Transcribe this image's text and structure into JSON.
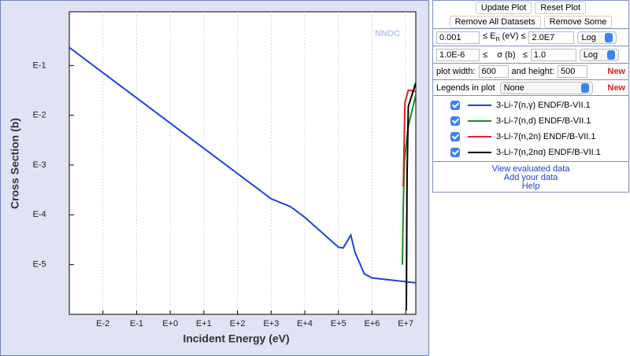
{
  "chart_data": {
    "type": "line",
    "x_label": "Incident Energy (eV)",
    "y_label": "Cross Section (b)",
    "x_log": true,
    "y_log": true,
    "grid": "x",
    "xlim": [
      0.001,
      20000000
    ],
    "ylim": [
      1e-06,
      1.2
    ],
    "xticks": [
      {
        "value": 0.01,
        "label": "E-2"
      },
      {
        "value": 0.1,
        "label": "E-1"
      },
      {
        "value": 1,
        "label": "E+0"
      },
      {
        "value": 10,
        "label": "E+1"
      },
      {
        "value": 100,
        "label": "E+2"
      },
      {
        "value": 1000,
        "label": "E+3"
      },
      {
        "value": 10000,
        "label": "E+4"
      },
      {
        "value": 100000,
        "label": "E+5"
      },
      {
        "value": 1000000,
        "label": "E+6"
      },
      {
        "value": 10000000,
        "label": "E+7"
      }
    ],
    "yticks": [
      {
        "value": 0.1,
        "label": "E-1"
      },
      {
        "value": 0.01,
        "label": "E-2"
      },
      {
        "value": 0.001,
        "label": "E-3"
      },
      {
        "value": 0.0001,
        "label": "E-4"
      },
      {
        "value": 1e-05,
        "label": "E-5"
      }
    ],
    "series": [
      {
        "name": "3-Li-7(n,γ) ENDF/B-VII.1",
        "color": "#1f3fe0",
        "x": [
          0.001,
          1000,
          3800,
          10000,
          100000,
          138000,
          234000,
          309000,
          590000,
          1000000,
          20000000
        ],
        "values": [
          0.23,
          0.00021,
          0.000145,
          8.9e-05,
          2.24e-05,
          2.15e-05,
          3.9e-05,
          1.8e-05,
          6.5e-06,
          5.4e-06,
          4.3e-06
        ]
      },
      {
        "name": "3-Li-7(n,d) ENDF/B-VII.1",
        "color": "#1a8f1a",
        "x": [
          8000000,
          8500000,
          9200000,
          10000000,
          12000000,
          20000000
        ],
        "values": [
          1e-05,
          0.00015,
          0.0012,
          0.0021,
          0.006,
          0.026
        ]
      },
      {
        "name": "3-Li-7(n,2n) ENDF/B-VII.1",
        "color": "#e02020",
        "x": [
          8500000,
          9500000,
          12000000,
          20000000
        ],
        "values": [
          0.00036,
          0.018,
          0.032,
          0.03
        ]
      },
      {
        "name": "3-Li-7(n,2nα) ENDF/B-VII.1",
        "color": "#000000",
        "x": [
          10500000,
          11000000,
          12000000,
          20000000
        ],
        "values": [
          1.2e-06,
          0.0006,
          0.015,
          0.045
        ]
      }
    ]
  },
  "logo_text": "NNDC",
  "controls": {
    "buttons": [
      "Update Plot",
      "Reset Plot",
      "Remove All Datasets",
      "Remove Some"
    ],
    "energy": {
      "min": "0.001",
      "pre": "≤ E",
      "sub": "n",
      "post": " (eV) ≤",
      "max": "2.0E7",
      "scale": "Log"
    },
    "sigma": {
      "min": "1.0E-6",
      "label": "≤    σ (b)   ≤",
      "max": "1.0",
      "scale": "Log"
    },
    "size": {
      "width_label": "plot width:",
      "width": "600",
      "height_label": "and height:",
      "height": "500",
      "new": "New"
    },
    "legends": {
      "label": "Legends in plot",
      "value": "None",
      "new": "New"
    },
    "links": [
      "View evaluated data",
      "Add your data",
      "Help"
    ]
  }
}
